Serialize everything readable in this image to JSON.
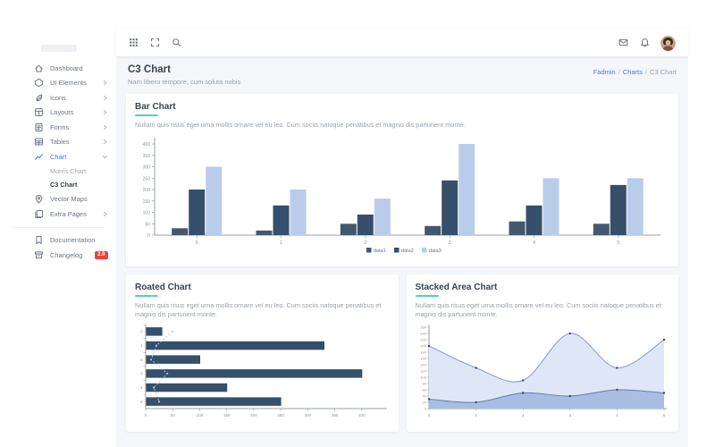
{
  "app": {
    "accent_teal": "#4fd0cd",
    "link_blue": "#3d78f2",
    "badge_red": "#f1403c"
  },
  "sidebar": {
    "items": [
      {
        "label": "Dashboard",
        "icon": "home"
      },
      {
        "label": "UI Elements",
        "icon": "ui",
        "chevron": "closed"
      },
      {
        "label": "Icons",
        "icon": "icons",
        "chevron": "closed"
      },
      {
        "label": "Layouts",
        "icon": "layouts",
        "chevron": "closed"
      },
      {
        "label": "Forms",
        "icon": "forms",
        "chevron": "closed"
      },
      {
        "label": "Tables",
        "icon": "tables",
        "chevron": "closed"
      },
      {
        "label": "Chart",
        "icon": "chart",
        "chevron": "open",
        "active": true,
        "children": [
          {
            "label": "Morris Chart"
          },
          {
            "label": "C3 Chart",
            "active": true
          }
        ]
      },
      {
        "label": "Vector Maps",
        "icon": "map"
      },
      {
        "label": "Extra Pages",
        "icon": "pages",
        "chevron": "closed"
      }
    ],
    "footer_items": [
      {
        "label": "Documentation",
        "icon": "doc"
      },
      {
        "label": "Changelog",
        "icon": "changelog",
        "badge": "2.0"
      }
    ]
  },
  "topbar": {
    "left_icons": [
      "menu-grid",
      "fullscreen",
      "search"
    ],
    "right_icons": [
      "mail",
      "bell"
    ],
    "has_avatar": true
  },
  "page_header": {
    "title": "C3 Chart",
    "subtitle": "Nam libero tempore, cum soluta nobis",
    "breadcrumb": [
      {
        "label": "Fadmin",
        "link": true
      },
      {
        "label": "Charts",
        "link": true
      },
      {
        "label": "C3 Chart",
        "link": false
      }
    ]
  },
  "cards": {
    "bar": {
      "title": "Bar Chart",
      "description": "Nullam quis risus eget urna mollis ornare vel eu leo. Cum sociis natoque penatibus et magnis dis parturient monte."
    },
    "rotated": {
      "title": "Roated Chart",
      "description": "Nullam quis risus eget urna mollis ornare vel eu leo. Cum sociis natoque penatibus et magnis dis parturient monte."
    },
    "area": {
      "title": "Stacked Area Chart",
      "description": "Nullam quis risus eget urna mollis ornare vel eu leo. Cum sociis natoque penatibus et magnis dis parturient monte."
    }
  },
  "chart_data": [
    {
      "id": "bar",
      "type": "bar",
      "title": "Bar Chart",
      "categories": [
        "0",
        "1",
        "2",
        "3",
        "4",
        "5"
      ],
      "series": [
        {
          "name": "data1",
          "color": "#42586f",
          "values": [
            30,
            20,
            50,
            40,
            60,
            50
          ]
        },
        {
          "name": "data2",
          "color": "#36506b",
          "values": [
            200,
            130,
            90,
            240,
            130,
            220
          ]
        },
        {
          "name": "data3",
          "color": "#b9cdea",
          "values": [
            300,
            200,
            160,
            400,
            250,
            250
          ]
        }
      ],
      "ylim": [
        0,
        400
      ],
      "ytick_step": 50,
      "xlabel": "",
      "ylabel": "",
      "legend_position": "bottom",
      "grid": false
    },
    {
      "id": "rotated",
      "type": "bar",
      "rotated": true,
      "title": "Roated Chart",
      "categories": [
        "0",
        "1",
        "2",
        "3",
        "4",
        "5"
      ],
      "series": [
        {
          "name": "data1",
          "render": "bar",
          "color": "#36506b",
          "values": [
            30,
            330,
            100,
            400,
            150,
            250
          ]
        },
        {
          "name": "data2",
          "render": "dashed-line",
          "color": "#b9cdea",
          "values": [
            50,
            20,
            10,
            40,
            15,
            25
          ]
        }
      ],
      "xlim": [
        0,
        400
      ],
      "xtick_step": 50,
      "legend_position": "none",
      "grid": false
    },
    {
      "id": "area",
      "type": "area",
      "title": "Stacked Area Chart",
      "categories": [
        "0",
        "1",
        "2",
        "3",
        "4",
        "5"
      ],
      "series": [
        {
          "name": "data1",
          "line_color": "#5c7fb5",
          "fill_color": "#a9bde3",
          "point_color": "#33495f",
          "values": [
            30,
            20,
            50,
            40,
            60,
            50
          ]
        },
        {
          "name": "data2",
          "line_color": "#7f9cd1",
          "fill_color": "#dfe7f6",
          "point_color": "#33495f",
          "values": [
            200,
            130,
            90,
            240,
            130,
            220
          ]
        }
      ],
      "ylim": [
        0,
        260
      ],
      "ytick_step": 20,
      "curve": "smooth",
      "legend_position": "none",
      "grid": false
    }
  ]
}
